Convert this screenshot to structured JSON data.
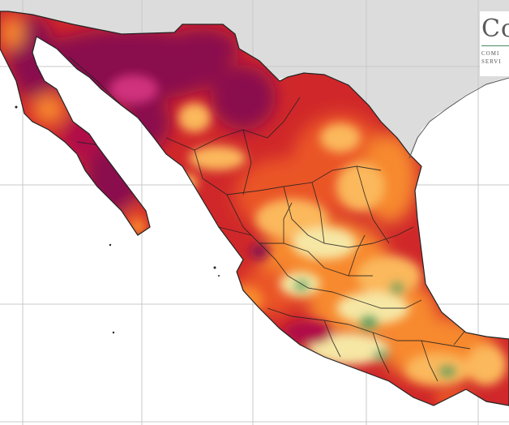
{
  "map": {
    "background_colors": {
      "land_other": "#dcdcdc",
      "ocean": "#ffffff",
      "grid": "#c8c8c8",
      "borders": "#222222"
    },
    "color_scale": [
      "#8a0a4e",
      "#b0114a",
      "#d0282a",
      "#ea5525",
      "#f7892e",
      "#fbb85c",
      "#f6e7a4",
      "#4e9a5b"
    ]
  },
  "logo": {
    "main": "Co",
    "sub1": "COMI",
    "sub2": "SERVI"
  }
}
